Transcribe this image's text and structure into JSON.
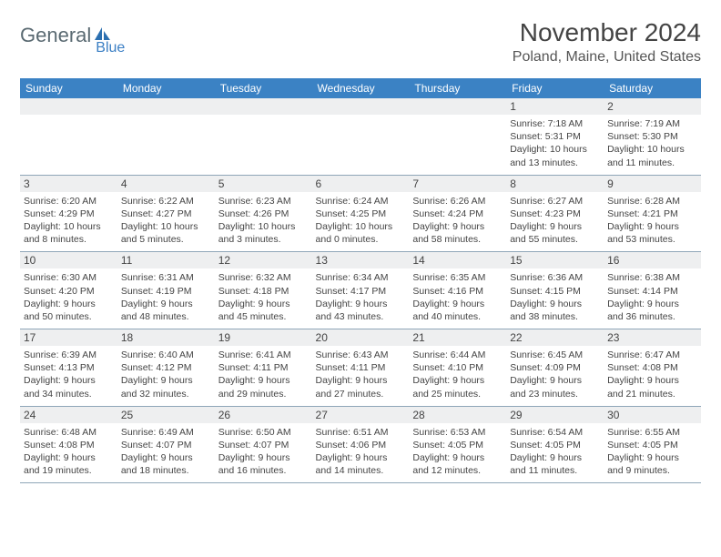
{
  "logo": {
    "part1": "General",
    "part2": "Blue"
  },
  "title": "November 2024",
  "location": "Poland, Maine, United States",
  "day_headers": [
    "Sunday",
    "Monday",
    "Tuesday",
    "Wednesday",
    "Thursday",
    "Friday",
    "Saturday"
  ],
  "colors": {
    "header_bg": "#3b82c4",
    "header_text": "#ffffff",
    "daynum_bg": "#eeeff0",
    "border": "#8fa6b8",
    "text": "#444444",
    "logo_dark": "#5a6a72",
    "logo_blue": "#3b7fc4"
  },
  "fonts": {
    "title_size": 28,
    "location_size": 16,
    "header_size": 12,
    "daynum_size": 12,
    "info_size": 10.5
  },
  "weeks": [
    [
      {
        "num": "",
        "sunrise": "",
        "sunset": "",
        "daylight": ""
      },
      {
        "num": "",
        "sunrise": "",
        "sunset": "",
        "daylight": ""
      },
      {
        "num": "",
        "sunrise": "",
        "sunset": "",
        "daylight": ""
      },
      {
        "num": "",
        "sunrise": "",
        "sunset": "",
        "daylight": ""
      },
      {
        "num": "",
        "sunrise": "",
        "sunset": "",
        "daylight": ""
      },
      {
        "num": "1",
        "sunrise": "Sunrise: 7:18 AM",
        "sunset": "Sunset: 5:31 PM",
        "daylight": "Daylight: 10 hours and 13 minutes."
      },
      {
        "num": "2",
        "sunrise": "Sunrise: 7:19 AM",
        "sunset": "Sunset: 5:30 PM",
        "daylight": "Daylight: 10 hours and 11 minutes."
      }
    ],
    [
      {
        "num": "3",
        "sunrise": "Sunrise: 6:20 AM",
        "sunset": "Sunset: 4:29 PM",
        "daylight": "Daylight: 10 hours and 8 minutes."
      },
      {
        "num": "4",
        "sunrise": "Sunrise: 6:22 AM",
        "sunset": "Sunset: 4:27 PM",
        "daylight": "Daylight: 10 hours and 5 minutes."
      },
      {
        "num": "5",
        "sunrise": "Sunrise: 6:23 AM",
        "sunset": "Sunset: 4:26 PM",
        "daylight": "Daylight: 10 hours and 3 minutes."
      },
      {
        "num": "6",
        "sunrise": "Sunrise: 6:24 AM",
        "sunset": "Sunset: 4:25 PM",
        "daylight": "Daylight: 10 hours and 0 minutes."
      },
      {
        "num": "7",
        "sunrise": "Sunrise: 6:26 AM",
        "sunset": "Sunset: 4:24 PM",
        "daylight": "Daylight: 9 hours and 58 minutes."
      },
      {
        "num": "8",
        "sunrise": "Sunrise: 6:27 AM",
        "sunset": "Sunset: 4:23 PM",
        "daylight": "Daylight: 9 hours and 55 minutes."
      },
      {
        "num": "9",
        "sunrise": "Sunrise: 6:28 AM",
        "sunset": "Sunset: 4:21 PM",
        "daylight": "Daylight: 9 hours and 53 minutes."
      }
    ],
    [
      {
        "num": "10",
        "sunrise": "Sunrise: 6:30 AM",
        "sunset": "Sunset: 4:20 PM",
        "daylight": "Daylight: 9 hours and 50 minutes."
      },
      {
        "num": "11",
        "sunrise": "Sunrise: 6:31 AM",
        "sunset": "Sunset: 4:19 PM",
        "daylight": "Daylight: 9 hours and 48 minutes."
      },
      {
        "num": "12",
        "sunrise": "Sunrise: 6:32 AM",
        "sunset": "Sunset: 4:18 PM",
        "daylight": "Daylight: 9 hours and 45 minutes."
      },
      {
        "num": "13",
        "sunrise": "Sunrise: 6:34 AM",
        "sunset": "Sunset: 4:17 PM",
        "daylight": "Daylight: 9 hours and 43 minutes."
      },
      {
        "num": "14",
        "sunrise": "Sunrise: 6:35 AM",
        "sunset": "Sunset: 4:16 PM",
        "daylight": "Daylight: 9 hours and 40 minutes."
      },
      {
        "num": "15",
        "sunrise": "Sunrise: 6:36 AM",
        "sunset": "Sunset: 4:15 PM",
        "daylight": "Daylight: 9 hours and 38 minutes."
      },
      {
        "num": "16",
        "sunrise": "Sunrise: 6:38 AM",
        "sunset": "Sunset: 4:14 PM",
        "daylight": "Daylight: 9 hours and 36 minutes."
      }
    ],
    [
      {
        "num": "17",
        "sunrise": "Sunrise: 6:39 AM",
        "sunset": "Sunset: 4:13 PM",
        "daylight": "Daylight: 9 hours and 34 minutes."
      },
      {
        "num": "18",
        "sunrise": "Sunrise: 6:40 AM",
        "sunset": "Sunset: 4:12 PM",
        "daylight": "Daylight: 9 hours and 32 minutes."
      },
      {
        "num": "19",
        "sunrise": "Sunrise: 6:41 AM",
        "sunset": "Sunset: 4:11 PM",
        "daylight": "Daylight: 9 hours and 29 minutes."
      },
      {
        "num": "20",
        "sunrise": "Sunrise: 6:43 AM",
        "sunset": "Sunset: 4:11 PM",
        "daylight": "Daylight: 9 hours and 27 minutes."
      },
      {
        "num": "21",
        "sunrise": "Sunrise: 6:44 AM",
        "sunset": "Sunset: 4:10 PM",
        "daylight": "Daylight: 9 hours and 25 minutes."
      },
      {
        "num": "22",
        "sunrise": "Sunrise: 6:45 AM",
        "sunset": "Sunset: 4:09 PM",
        "daylight": "Daylight: 9 hours and 23 minutes."
      },
      {
        "num": "23",
        "sunrise": "Sunrise: 6:47 AM",
        "sunset": "Sunset: 4:08 PM",
        "daylight": "Daylight: 9 hours and 21 minutes."
      }
    ],
    [
      {
        "num": "24",
        "sunrise": "Sunrise: 6:48 AM",
        "sunset": "Sunset: 4:08 PM",
        "daylight": "Daylight: 9 hours and 19 minutes."
      },
      {
        "num": "25",
        "sunrise": "Sunrise: 6:49 AM",
        "sunset": "Sunset: 4:07 PM",
        "daylight": "Daylight: 9 hours and 18 minutes."
      },
      {
        "num": "26",
        "sunrise": "Sunrise: 6:50 AM",
        "sunset": "Sunset: 4:07 PM",
        "daylight": "Daylight: 9 hours and 16 minutes."
      },
      {
        "num": "27",
        "sunrise": "Sunrise: 6:51 AM",
        "sunset": "Sunset: 4:06 PM",
        "daylight": "Daylight: 9 hours and 14 minutes."
      },
      {
        "num": "28",
        "sunrise": "Sunrise: 6:53 AM",
        "sunset": "Sunset: 4:05 PM",
        "daylight": "Daylight: 9 hours and 12 minutes."
      },
      {
        "num": "29",
        "sunrise": "Sunrise: 6:54 AM",
        "sunset": "Sunset: 4:05 PM",
        "daylight": "Daylight: 9 hours and 11 minutes."
      },
      {
        "num": "30",
        "sunrise": "Sunrise: 6:55 AM",
        "sunset": "Sunset: 4:05 PM",
        "daylight": "Daylight: 9 hours and 9 minutes."
      }
    ]
  ]
}
